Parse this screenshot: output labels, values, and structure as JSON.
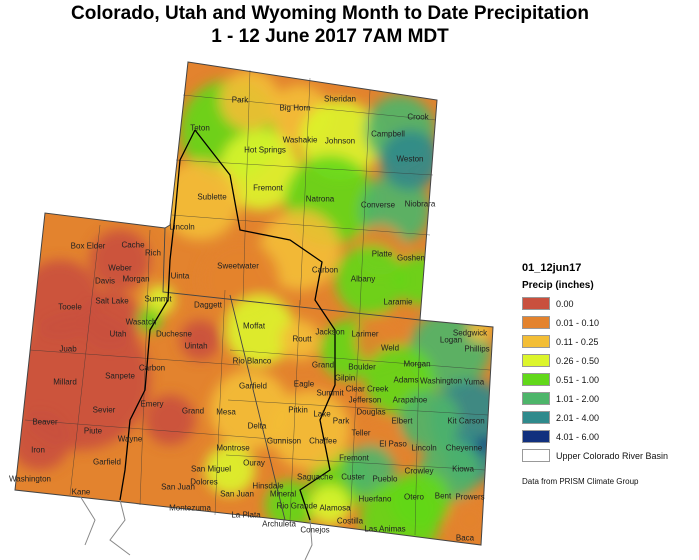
{
  "title": {
    "line1": "Colorado, Utah and Wyoming Month to Date Precipitation",
    "line2": "1 - 12 June 2017 7AM MDT"
  },
  "legend": {
    "dataset": "01_12jun17",
    "heading": "Precip (inches)",
    "classes": [
      {
        "label": "0.00",
        "color": "#c9503e"
      },
      {
        "label": "0.01 - 0.10",
        "color": "#e3832e"
      },
      {
        "label": "0.11 - 0.25",
        "color": "#f3be36"
      },
      {
        "label": "0.26 - 0.50",
        "color": "#dcf52c"
      },
      {
        "label": "0.51 - 1.00",
        "color": "#62d81a"
      },
      {
        "label": "1.01 - 2.00",
        "color": "#4db56a"
      },
      {
        "label": "2.01 - 4.00",
        "color": "#2f8a8c"
      },
      {
        "label": "4.01 - 6.00",
        "color": "#11307e"
      }
    ],
    "basin_label": "Upper Colorado River Basin",
    "credit": "Data from PRISM Climate Group"
  },
  "counties": {
    "wyoming": [
      "Park",
      "Big Horn",
      "Sheridan",
      "Crook",
      "Teton",
      "Washakie",
      "Johnson",
      "Campbell",
      "Hot Springs",
      "Weston",
      "Fremont",
      "Sublette",
      "Natrona",
      "Converse",
      "Niobrara",
      "Lincoln",
      "Uinta",
      "Sweetwater",
      "Carbon",
      "Albany",
      "Platte",
      "Goshen",
      "Laramie"
    ],
    "utah": [
      "Box Elder",
      "Cache",
      "Rich",
      "Weber",
      "Davis",
      "Morgan",
      "Summit",
      "Daggett",
      "Salt Lake",
      "Tooele",
      "Wasatch",
      "Duchesne",
      "Uintah",
      "Utah",
      "Juab",
      "Millard",
      "Carbon",
      "Sanpete",
      "Emery",
      "Sevier",
      "Beaver",
      "Grand",
      "Piute",
      "Wayne",
      "Iron",
      "Garfield",
      "Washington",
      "Kane",
      "San Juan"
    ],
    "colorado": [
      "Moffat",
      "Routt",
      "Jackson",
      "Larimer",
      "Rio Blanco",
      "Grand",
      "Boulder",
      "Weld",
      "Logan",
      "Sedgwick",
      "Phillips",
      "Morgan",
      "Eagle",
      "Summit",
      "Gilpin",
      "Clear Creek",
      "Adams",
      "Washington",
      "Yuma",
      "Jefferson",
      "Arapahoe",
      "Garfield",
      "Mesa",
      "Pitkin",
      "Lake",
      "Delta",
      "Douglas",
      "Elbert",
      "Park",
      "Kit Carson",
      "Gunnison",
      "Chaffee",
      "Teller",
      "El Paso",
      "Lincoln",
      "Cheyenne",
      "Montrose",
      "Fremont",
      "Ouray",
      "San Miguel",
      "Custer",
      "Pueblo",
      "Crowley",
      "Kiowa",
      "Saguache",
      "Hinsdale",
      "Dolores",
      "San Juan",
      "Mineral",
      "Otero",
      "Bent",
      "Prowers",
      "Huerfano",
      "Rio Grande",
      "Alamosa",
      "Montezuma",
      "La Plata",
      "Archuleta",
      "Conejos",
      "Costilla",
      "Las Animas",
      "Baca"
    ]
  }
}
